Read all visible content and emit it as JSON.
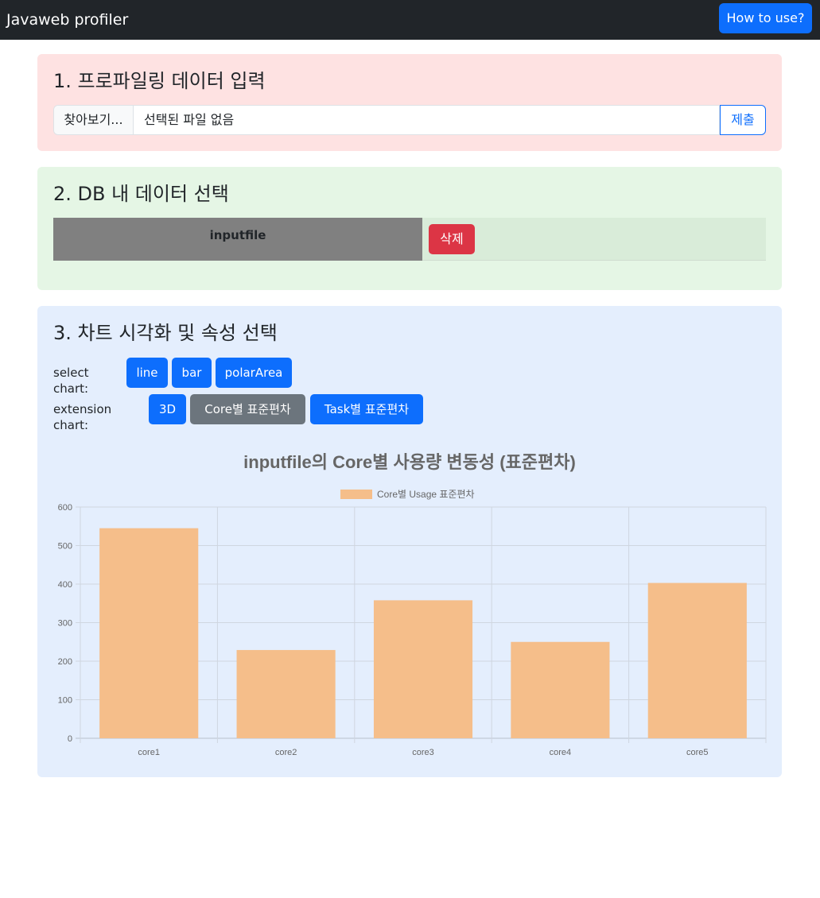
{
  "navbar": {
    "brand": "Javaweb profiler",
    "help_button": "How to use?"
  },
  "section1": {
    "title": "1. 프로파일링 데이터 입력",
    "browse_label": "찾아보기...",
    "file_status": "선택된 파일 없음",
    "submit_label": "제출"
  },
  "section2": {
    "title": "2. DB 내 데이터 선택",
    "rows": [
      {
        "name": "inputfile",
        "delete_label": "삭제"
      }
    ]
  },
  "section3": {
    "title": "3. 차트 시각화 및 속성 선택",
    "select_label": "select chart:",
    "select_buttons": [
      "line",
      "bar",
      "polarArea"
    ],
    "extension_label": "extension chart:",
    "extension_buttons": [
      "3D",
      "Core별 표준편차",
      "Task별 표준편차"
    ]
  },
  "colors": {
    "bar_fill": "#f5be8a",
    "primary": "#0d6efd",
    "secondary": "#6c757d",
    "danger": "#dc3545"
  },
  "chart_data": {
    "type": "bar",
    "title": "inputfile의 Core별 사용량 변동성 (표준편차)",
    "categories": [
      "core1",
      "core2",
      "core3",
      "core4",
      "core5"
    ],
    "series": [
      {
        "name": "Core별 Usage 표준편차",
        "values": [
          545,
          229,
          358,
          250,
          403
        ]
      }
    ],
    "ylim": [
      0,
      600
    ],
    "yticks": [
      0,
      100,
      200,
      300,
      400,
      500,
      600
    ],
    "grid": true,
    "legend": "top"
  }
}
